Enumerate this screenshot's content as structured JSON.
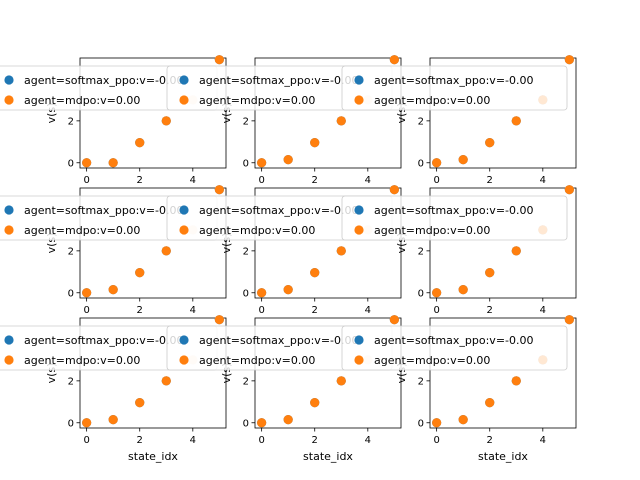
{
  "chart_data": [
    {
      "type": "scatter",
      "xlabel": "",
      "ylabel": "v(s)",
      "xlim": [
        -0.25,
        5.25
      ],
      "ylim": [
        -0.25,
        5.0
      ],
      "xticks": [
        0,
        2,
        4
      ],
      "yticks": [
        0,
        2
      ],
      "series": [
        {
          "name": "agent=softmax_ppo:v=-0.00",
          "color": "#1f77b4",
          "x": [
            0,
            1,
            2,
            3,
            4,
            5
          ],
          "y": [
            0.0,
            0.0,
            0.96,
            2.0,
            3.0,
            4.92
          ]
        },
        {
          "name": "agent=mdpo:v=0.00",
          "color": "#ff7f0e",
          "x": [
            0,
            1,
            2,
            3,
            4,
            5
          ],
          "y": [
            0.0,
            0.0,
            0.96,
            2.0,
            3.0,
            4.92
          ]
        }
      ]
    },
    {
      "type": "scatter",
      "xlabel": "",
      "ylabel": "v(s)",
      "xlim": [
        -0.25,
        5.25
      ],
      "ylim": [
        -0.25,
        5.0
      ],
      "xticks": [
        0,
        2,
        4
      ],
      "yticks": [
        0,
        2
      ],
      "series": [
        {
          "name": "agent=softmax_ppo:v=-0.00",
          "color": "#1f77b4",
          "x": [
            0,
            1,
            2,
            3,
            4,
            5
          ],
          "y": [
            0.0,
            0.15,
            0.96,
            2.0,
            3.0,
            4.92
          ]
        },
        {
          "name": "agent=mdpo:v=0.00",
          "color": "#ff7f0e",
          "x": [
            0,
            1,
            2,
            3,
            4,
            5
          ],
          "y": [
            0.0,
            0.15,
            0.96,
            2.0,
            3.0,
            4.92
          ]
        }
      ]
    },
    {
      "type": "scatter",
      "xlabel": "",
      "ylabel": "v(s)",
      "xlim": [
        -0.25,
        5.25
      ],
      "ylim": [
        -0.25,
        5.0
      ],
      "xticks": [
        0,
        2,
        4
      ],
      "yticks": [
        0,
        2
      ],
      "series": [
        {
          "name": "agent=softmax_ppo:v=-0.00",
          "color": "#1f77b4",
          "x": [
            0,
            1,
            2,
            3,
            4,
            5
          ],
          "y": [
            0.0,
            0.15,
            0.96,
            2.0,
            3.0,
            4.92
          ]
        },
        {
          "name": "agent=mdpo:v=0.00",
          "color": "#ff7f0e",
          "x": [
            0,
            1,
            2,
            3,
            4,
            5
          ],
          "y": [
            0.0,
            0.15,
            0.96,
            2.0,
            3.0,
            4.92
          ]
        }
      ]
    },
    {
      "type": "scatter",
      "xlabel": "",
      "ylabel": "v(s)",
      "xlim": [
        -0.25,
        5.25
      ],
      "ylim": [
        -0.25,
        5.0
      ],
      "xticks": [
        0,
        2,
        4
      ],
      "yticks": [
        0,
        2
      ],
      "series": [
        {
          "name": "agent=softmax_ppo:v=-0.00",
          "color": "#1f77b4",
          "x": [
            0,
            1,
            2,
            3,
            4,
            5
          ],
          "y": [
            0.0,
            0.15,
            0.96,
            2.0,
            3.0,
            4.92
          ]
        },
        {
          "name": "agent=mdpo:v=0.00",
          "color": "#ff7f0e",
          "x": [
            0,
            1,
            2,
            3,
            4,
            5
          ],
          "y": [
            0.0,
            0.15,
            0.96,
            2.0,
            3.0,
            4.92
          ]
        }
      ]
    },
    {
      "type": "scatter",
      "xlabel": "",
      "ylabel": "v(s)",
      "xlim": [
        -0.25,
        5.25
      ],
      "ylim": [
        -0.25,
        5.0
      ],
      "xticks": [
        0,
        2,
        4
      ],
      "yticks": [
        0,
        2
      ],
      "series": [
        {
          "name": "agent=softmax_ppo:v=-0.00",
          "color": "#1f77b4",
          "x": [
            0,
            1,
            2,
            3,
            4,
            5
          ],
          "y": [
            0.0,
            0.15,
            0.96,
            2.0,
            3.0,
            4.92
          ]
        },
        {
          "name": "agent=mdpo:v=0.00",
          "color": "#ff7f0e",
          "x": [
            0,
            1,
            2,
            3,
            4,
            5
          ],
          "y": [
            0.0,
            0.15,
            0.96,
            2.0,
            3.0,
            4.92
          ]
        }
      ]
    },
    {
      "type": "scatter",
      "xlabel": "",
      "ylabel": "v(s)",
      "xlim": [
        -0.25,
        5.25
      ],
      "ylim": [
        -0.25,
        5.0
      ],
      "xticks": [
        0,
        2,
        4
      ],
      "yticks": [
        0,
        2
      ],
      "series": [
        {
          "name": "agent=softmax_ppo:v=-0.00",
          "color": "#1f77b4",
          "x": [
            0,
            1,
            2,
            3,
            4,
            5
          ],
          "y": [
            0.0,
            0.15,
            0.96,
            2.0,
            3.0,
            4.92
          ]
        },
        {
          "name": "agent=mdpo:v=0.00",
          "color": "#ff7f0e",
          "x": [
            0,
            1,
            2,
            3,
            4,
            5
          ],
          "y": [
            0.0,
            0.15,
            0.96,
            2.0,
            3.0,
            4.92
          ]
        }
      ]
    },
    {
      "type": "scatter",
      "xlabel": "state_idx",
      "ylabel": "v(s)",
      "xlim": [
        -0.25,
        5.25
      ],
      "ylim": [
        -0.25,
        5.0
      ],
      "xticks": [
        0,
        2,
        4
      ],
      "yticks": [
        0,
        2
      ],
      "series": [
        {
          "name": "agent=softmax_ppo:v=-0.00",
          "color": "#1f77b4",
          "x": [
            0,
            1,
            2,
            3,
            4,
            5
          ],
          "y": [
            0.0,
            0.15,
            0.96,
            2.0,
            3.0,
            4.92
          ]
        },
        {
          "name": "agent=mdpo:v=0.00",
          "color": "#ff7f0e",
          "x": [
            0,
            1,
            2,
            3,
            4,
            5
          ],
          "y": [
            0.0,
            0.15,
            0.96,
            2.0,
            3.0,
            4.92
          ]
        }
      ]
    },
    {
      "type": "scatter",
      "xlabel": "state_idx",
      "ylabel": "v(s)",
      "xlim": [
        -0.25,
        5.25
      ],
      "ylim": [
        -0.25,
        5.0
      ],
      "xticks": [
        0,
        2,
        4
      ],
      "yticks": [
        0,
        2
      ],
      "series": [
        {
          "name": "agent=softmax_ppo:v=-0.00",
          "color": "#1f77b4",
          "x": [
            0,
            1,
            2,
            3,
            4,
            5
          ],
          "y": [
            0.0,
            0.15,
            0.96,
            2.0,
            3.0,
            4.92
          ]
        },
        {
          "name": "agent=mdpo:v=0.00",
          "color": "#ff7f0e",
          "x": [
            0,
            1,
            2,
            3,
            4,
            5
          ],
          "y": [
            0.0,
            0.15,
            0.96,
            2.0,
            3.0,
            4.92
          ]
        }
      ]
    },
    {
      "type": "scatter",
      "xlabel": "state_idx",
      "ylabel": "v(s)",
      "xlim": [
        -0.25,
        5.25
      ],
      "ylim": [
        -0.25,
        5.0
      ],
      "xticks": [
        0,
        2,
        4
      ],
      "yticks": [
        0,
        2
      ],
      "series": [
        {
          "name": "agent=softmax_ppo:v=-0.00",
          "color": "#1f77b4",
          "x": [
            0,
            1,
            2,
            3,
            4,
            5
          ],
          "y": [
            0.0,
            0.15,
            0.96,
            2.0,
            3.0,
            4.92
          ]
        },
        {
          "name": "agent=mdpo:v=0.00",
          "color": "#ff7f0e",
          "x": [
            0,
            1,
            2,
            3,
            4,
            5
          ],
          "y": [
            0.0,
            0.15,
            0.96,
            2.0,
            3.0,
            4.92
          ]
        }
      ]
    }
  ]
}
